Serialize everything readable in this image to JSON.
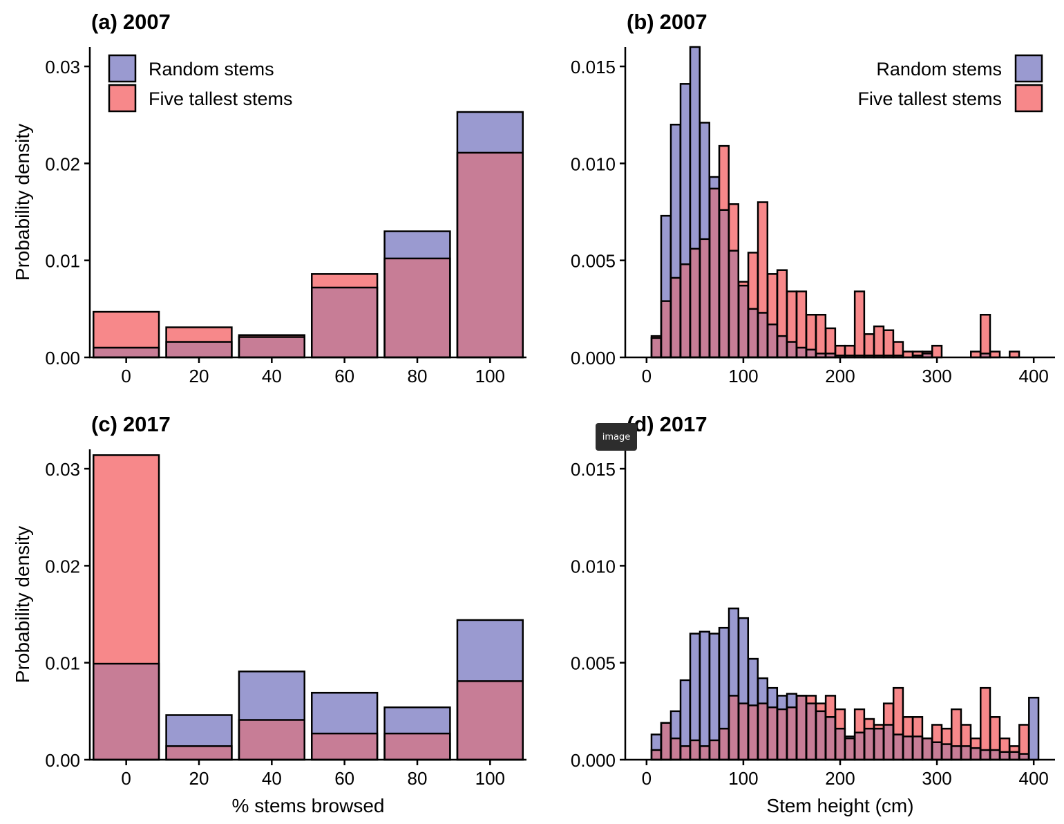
{
  "colors": {
    "random": "#9a9ad0",
    "tallest": "#f7888a",
    "overlap": "#c77d96",
    "outline": "#000000"
  },
  "legend": {
    "random": "Random stems",
    "tallest": "Five tallest stems"
  },
  "tooltip": {
    "label": "image"
  },
  "chart_data": [
    {
      "id": "a",
      "type": "bar",
      "tag": "(a)",
      "year": "2007",
      "xlabel": "",
      "ylabel": "Probability density",
      "xlim": [
        -10,
        110
      ],
      "ylim": [
        0,
        0.032
      ],
      "xticks": [
        0,
        20,
        40,
        60,
        80,
        100
      ],
      "xtick_labels": [
        "0",
        "20",
        "40",
        "60",
        "80",
        "100"
      ],
      "yticks": [
        0,
        0.01,
        0.02,
        0.03
      ],
      "ytick_labels": [
        "0.00",
        "0.01",
        "0.02",
        "0.03"
      ],
      "legend_position": "top-left",
      "binwidth": 20,
      "x": [
        0,
        20,
        40,
        60,
        80,
        100
      ],
      "series": [
        {
          "name": "Random stems",
          "values": [
            0.001,
            0.0016,
            0.0021,
            0.0072,
            0.013,
            0.0253
          ]
        },
        {
          "name": "Five tallest stems",
          "values": [
            0.0047,
            0.0031,
            0.0023,
            0.0086,
            0.0102,
            0.0211
          ]
        }
      ]
    },
    {
      "id": "b",
      "type": "bar",
      "tag": "(b)",
      "year": "2007",
      "xlabel": "",
      "ylabel": "",
      "xlim": [
        -22,
        422
      ],
      "ylim": [
        0,
        0.016
      ],
      "xticks": [
        0,
        100,
        200,
        300,
        400
      ],
      "xtick_labels": [
        "0",
        "100",
        "200",
        "300",
        "400"
      ],
      "yticks": [
        0,
        0.005,
        0.01,
        0.015
      ],
      "ytick_labels": [
        "0.000",
        "0.005",
        "0.010",
        "0.015"
      ],
      "legend_position": "top-right",
      "binwidth": 10,
      "x": [
        10,
        20,
        30,
        40,
        50,
        60,
        70,
        80,
        90,
        100,
        110,
        120,
        130,
        140,
        150,
        160,
        170,
        180,
        190,
        200,
        210,
        220,
        230,
        240,
        250,
        260,
        270,
        280,
        290,
        300,
        310,
        320,
        330,
        340,
        350,
        360,
        370,
        380,
        390
      ],
      "series": [
        {
          "name": "Random stems",
          "values": [
            0.001,
            0.0073,
            0.012,
            0.0141,
            0.016,
            0.0121,
            0.0093,
            0.0076,
            0.0055,
            0.0037,
            0.0025,
            0.0023,
            0.0017,
            0.0011,
            0.0008,
            0.0005,
            0.0004,
            0.0002,
            0.0002,
            0.0001,
            0.0001,
            0.0001,
            0.0001,
            0.0001,
            0.0001,
            0.0001,
            0,
            0.0001,
            0.0002,
            0,
            0,
            0,
            0,
            0,
            0.0002,
            0,
            0,
            0,
            0
          ]
        },
        {
          "name": "Five tallest stems",
          "values": [
            0.0011,
            0.0029,
            0.0041,
            0.0048,
            0.0056,
            0.0061,
            0.0087,
            0.0109,
            0.0079,
            0.0039,
            0.0054,
            0.008,
            0.0043,
            0.0045,
            0.0034,
            0.0034,
            0.0022,
            0.0022,
            0.0015,
            0.0006,
            0.0006,
            0.0034,
            0.0012,
            0.0016,
            0.0014,
            0.0008,
            0.0003,
            0.0003,
            0.0003,
            0.0006,
            0,
            0,
            0,
            0.0003,
            0.0022,
            0.0003,
            0,
            0.0003,
            0
          ]
        }
      ]
    },
    {
      "id": "c",
      "type": "bar",
      "tag": "(c)",
      "year": "2017",
      "xlabel": "% stems browsed",
      "ylabel": "Probability density",
      "xlim": [
        -10,
        110
      ],
      "ylim": [
        0,
        0.032
      ],
      "xticks": [
        0,
        20,
        40,
        60,
        80,
        100
      ],
      "xtick_labels": [
        "0",
        "20",
        "40",
        "60",
        "80",
        "100"
      ],
      "yticks": [
        0,
        0.01,
        0.02,
        0.03
      ],
      "ytick_labels": [
        "0.00",
        "0.01",
        "0.02",
        "0.03"
      ],
      "legend_position": "none",
      "binwidth": 20,
      "x": [
        0,
        20,
        40,
        60,
        80,
        100
      ],
      "series": [
        {
          "name": "Random stems",
          "values": [
            0.0099,
            0.0046,
            0.0091,
            0.0069,
            0.0054,
            0.0144
          ]
        },
        {
          "name": "Five tallest stems",
          "values": [
            0.0314,
            0.0014,
            0.0041,
            0.0027,
            0.0027,
            0.0081
          ]
        }
      ]
    },
    {
      "id": "d",
      "type": "bar",
      "tag": "(d)",
      "year": "2017",
      "xlabel": "Stem height (cm)",
      "ylabel": "",
      "xlim": [
        -22,
        422
      ],
      "ylim": [
        0,
        0.016
      ],
      "xticks": [
        0,
        100,
        200,
        300,
        400
      ],
      "xtick_labels": [
        "0",
        "100",
        "200",
        "300",
        "400"
      ],
      "yticks": [
        0,
        0.005,
        0.01,
        0.015
      ],
      "ytick_labels": [
        "0.000",
        "0.005",
        "0.010",
        "0.015"
      ],
      "legend_position": "none",
      "binwidth": 10,
      "x": [
        10,
        20,
        30,
        40,
        50,
        60,
        70,
        80,
        90,
        100,
        110,
        120,
        130,
        140,
        150,
        160,
        170,
        180,
        190,
        200,
        210,
        220,
        230,
        240,
        250,
        260,
        270,
        280,
        290,
        300,
        310,
        320,
        330,
        340,
        350,
        360,
        370,
        380,
        390,
        400
      ],
      "series": [
        {
          "name": "Random stems",
          "values": [
            0.0013,
            0.0019,
            0.0025,
            0.0041,
            0.0065,
            0.0066,
            0.0065,
            0.0068,
            0.0078,
            0.0073,
            0.0052,
            0.0042,
            0.0037,
            0.0033,
            0.0034,
            0.0033,
            0.0029,
            0.0025,
            0.0022,
            0.0016,
            0.0012,
            0.0014,
            0.0016,
            0.0016,
            0.0018,
            0.0013,
            0.0012,
            0.0012,
            0.0011,
            0.0009,
            0.0008,
            0.0007,
            0.0007,
            0.0006,
            0.0005,
            0.0005,
            0.0004,
            0.0004,
            0.0003,
            0.0032
          ]
        },
        {
          "name": "Five tallest stems",
          "values": [
            0.0005,
            0.0019,
            0.0011,
            0.0007,
            0.001,
            0.0007,
            0.001,
            0.0016,
            0.0033,
            0.0029,
            0.0028,
            0.0029,
            0.0027,
            0.0026,
            0.0027,
            0.0033,
            0.0033,
            0.0029,
            0.0033,
            0.0026,
            0.0011,
            0.0026,
            0.0021,
            0.0018,
            0.0029,
            0.0037,
            0.0022,
            0.0022,
            0.0011,
            0.0018,
            0.0016,
            0.0026,
            0.0018,
            0.0011,
            0.0037,
            0.0022,
            0.0011,
            0.0007,
            0.0018,
            0
          ]
        }
      ]
    }
  ]
}
